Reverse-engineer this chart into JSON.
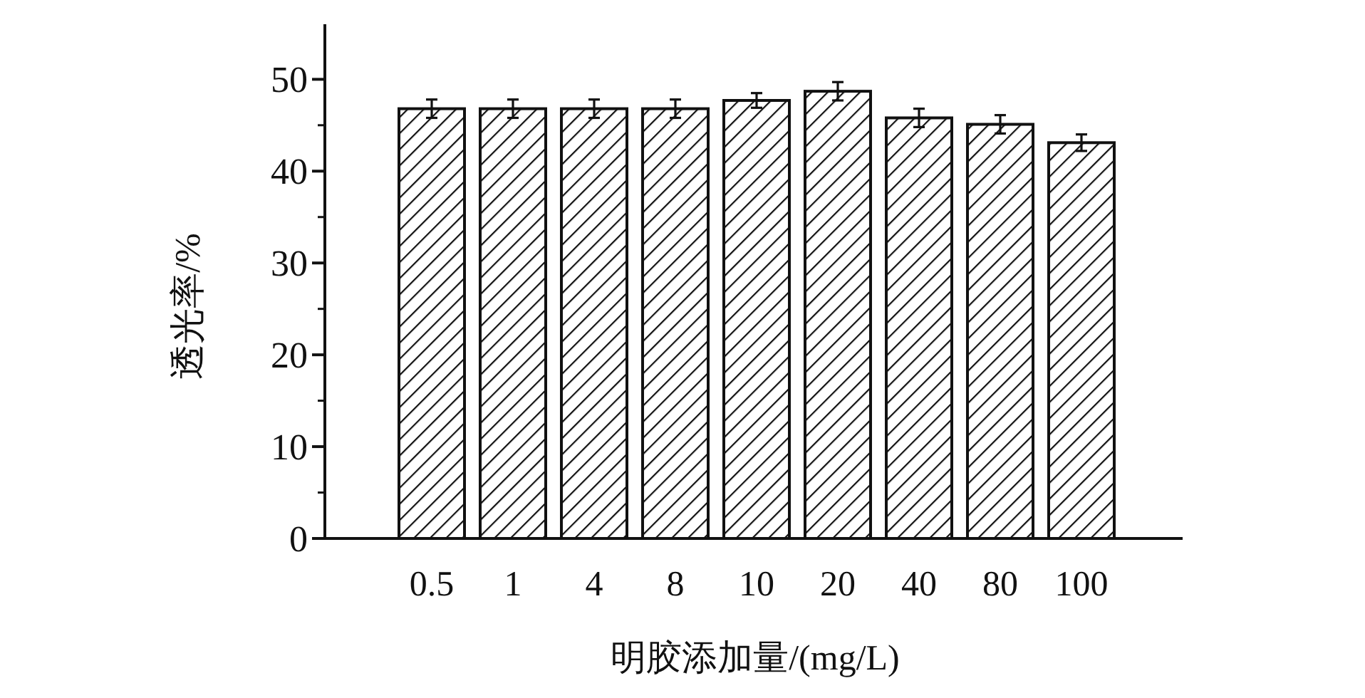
{
  "chart_data": {
    "type": "bar",
    "xlabel": "明胶添加量/(mg/L)",
    "ylabel": "透光率/%",
    "categories": [
      "0.5",
      "1",
      "4",
      "8",
      "10",
      "20",
      "40",
      "80",
      "100"
    ],
    "values": [
      46.8,
      46.8,
      46.8,
      46.8,
      47.7,
      48.7,
      45.8,
      45.1,
      43.1
    ],
    "errors": [
      1,
      1,
      1,
      1,
      0.8,
      1,
      1,
      1,
      0.9
    ],
    "ylim": [
      0,
      56
    ],
    "yticks": [
      0,
      10,
      20,
      30,
      40,
      50
    ],
    "grid": false
  }
}
